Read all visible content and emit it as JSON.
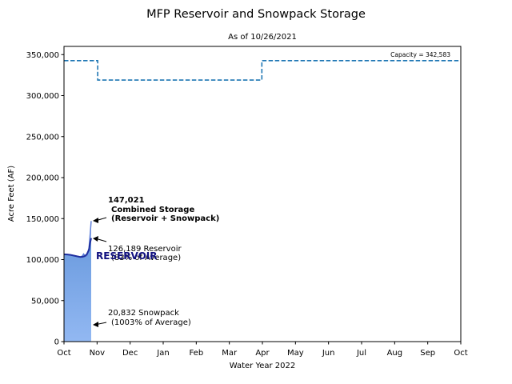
{
  "chart_data": {
    "type": "area",
    "title": "MFP Reservoir and Snowpack Storage",
    "subtitle": "As of 10/26/2021",
    "xlabel": "Water Year 2022",
    "ylabel": "Acre Feet (AF)",
    "ylim": [
      0,
      360000
    ],
    "y_ticks": [
      0,
      50000,
      100000,
      150000,
      200000,
      250000,
      300000,
      350000
    ],
    "y_tick_labels": [
      "0",
      "50,000",
      "100,000",
      "150,000",
      "200,000",
      "250,000",
      "300,000",
      "350,000"
    ],
    "x_tick_labels": [
      "Oct",
      "Nov",
      "Dec",
      "Jan",
      "Feb",
      "Mar",
      "Apr",
      "May",
      "Jun",
      "Jul",
      "Aug",
      "Sep",
      "Oct"
    ],
    "x_unit": "days since Oct 1",
    "xlim": [
      0,
      365
    ],
    "grid": false,
    "colors": {
      "reservoir_fill": "#6f9fdf",
      "reservoir_line": "#1f2f9f",
      "snow_fill": "#a9c8f5",
      "capacity_line": "#1f77b4",
      "combined_line": "#6080d8"
    },
    "capacity_label": "Capacity = 342,583",
    "capacity_line": {
      "x": [
        0,
        31,
        31,
        182,
        182,
        365
      ],
      "y": [
        342583,
        342583,
        319000,
        319000,
        342583,
        342583
      ]
    },
    "series": [
      {
        "name": "RESERVOIR",
        "x": [
          0,
          3,
          6,
          9,
          12,
          15,
          17,
          19,
          21,
          23,
          24,
          25
        ],
        "y": [
          106500,
          106200,
          105700,
          104900,
          104000,
          103200,
          103400,
          104200,
          106500,
          112000,
          120500,
          126189
        ]
      },
      {
        "name": "Combined",
        "x": [
          0,
          3,
          6,
          9,
          12,
          15,
          17,
          18,
          19,
          20,
          21,
          23,
          24,
          25
        ],
        "y": [
          106500,
          106200,
          105700,
          104900,
          104000,
          103200,
          104500,
          106800,
          105000,
          104200,
          105000,
          114000,
          130000,
          147021
        ]
      }
    ],
    "annotations": {
      "combined": {
        "value_label": "147,021",
        "line1": "Combined Storage",
        "line2": "(Reservoir + Snowpack)"
      },
      "reservoir": {
        "line1": "126,189 Reservoir",
        "line2": "(83% of Average)"
      },
      "snowpack": {
        "line1": "20,832 Snowpack",
        "line2": "(1003% of Average)"
      },
      "reservoir_label": "RESERVOIR"
    }
  }
}
